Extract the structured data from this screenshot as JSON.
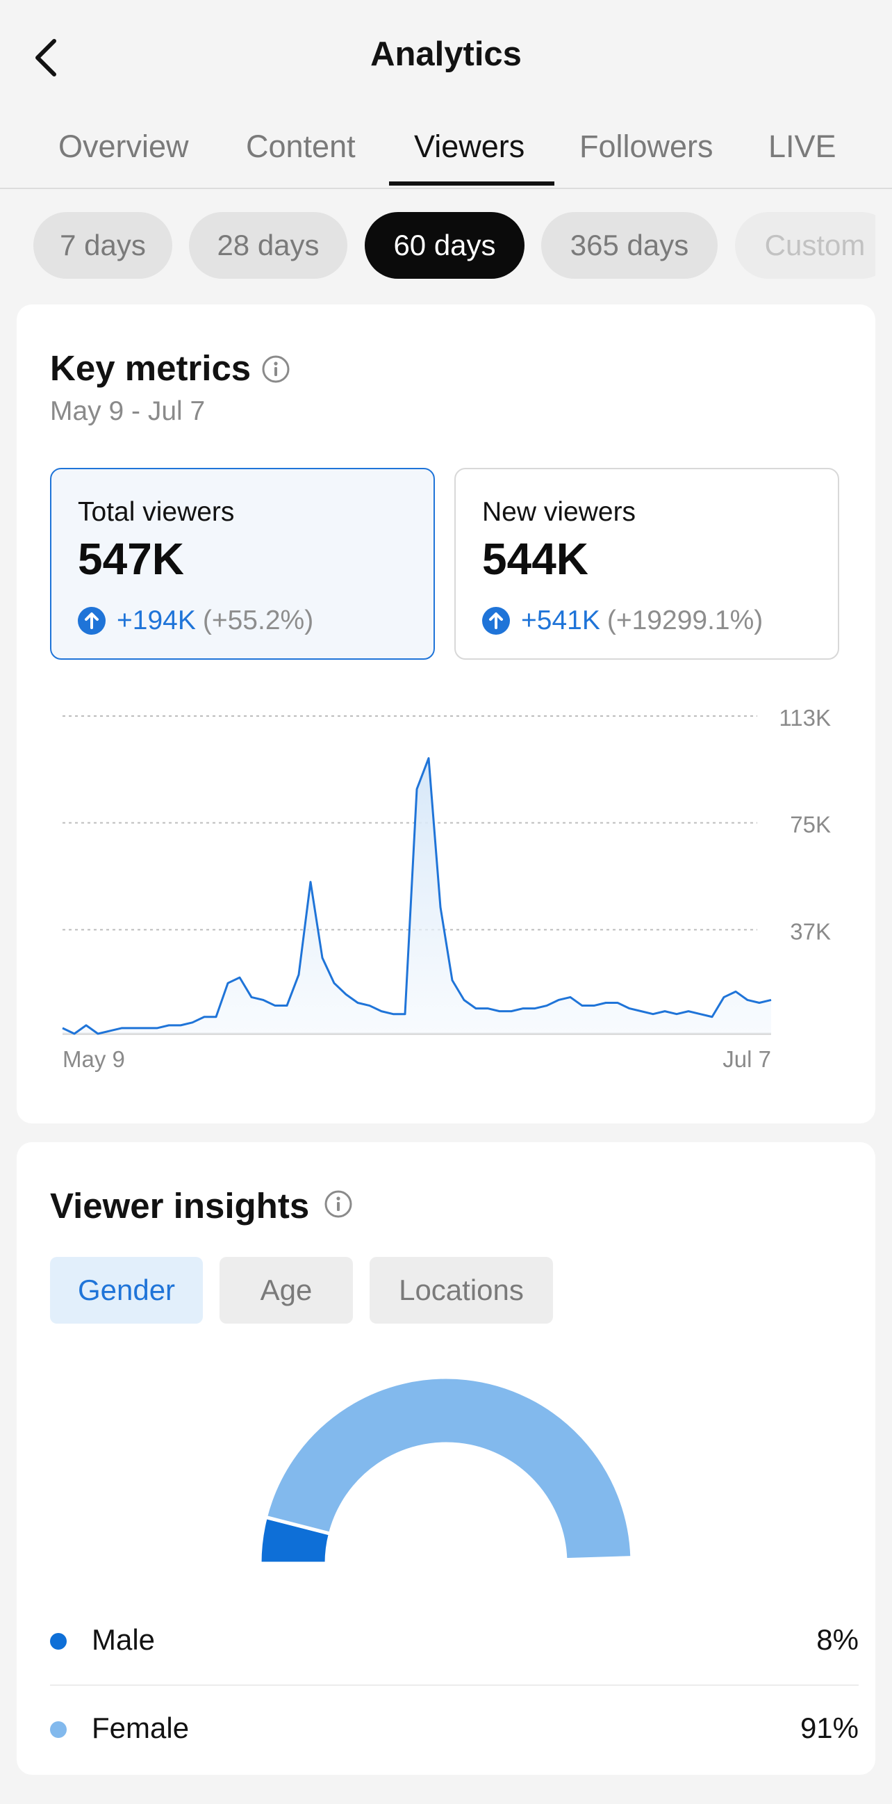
{
  "header": {
    "title": "Analytics",
    "back_icon": "chevron-left-icon"
  },
  "tabs": [
    {
      "label": "Overview",
      "active": false
    },
    {
      "label": "Content",
      "active": false
    },
    {
      "label": "Viewers",
      "active": true
    },
    {
      "label": "Followers",
      "active": false
    },
    {
      "label": "LIVE",
      "active": false
    }
  ],
  "periods": [
    {
      "label": "7 days",
      "active": false
    },
    {
      "label": "28 days",
      "active": false
    },
    {
      "label": "60 days",
      "active": true
    },
    {
      "label": "365 days",
      "active": false
    },
    {
      "label": "Custom",
      "active": false
    }
  ],
  "key_metrics": {
    "title": "Key metrics",
    "date_range": "May 9 - Jul 7",
    "metrics": [
      {
        "label": "Total viewers",
        "value": "547K",
        "change": "+194K",
        "change_pct": "(+55.2%)",
        "selected": true
      },
      {
        "label": "New viewers",
        "value": "544K",
        "change": "+541K",
        "change_pct": "(+19299.1%)",
        "selected": false
      }
    ]
  },
  "chart_data": {
    "type": "area",
    "title": "",
    "series": [
      {
        "values": [
          2,
          0,
          3,
          0,
          1,
          2,
          2,
          2,
          2,
          3,
          3,
          4,
          6,
          6,
          18,
          20,
          13,
          12,
          10,
          10,
          21,
          54,
          27,
          18,
          14,
          11,
          10,
          8,
          7,
          7,
          87,
          98,
          45,
          19,
          12,
          9,
          9,
          8,
          8,
          9,
          9,
          10,
          12,
          13,
          10,
          10,
          11,
          11,
          9,
          8,
          7,
          8,
          7,
          8,
          7,
          6,
          13,
          15,
          12,
          11,
          12
        ]
      }
    ],
    "x_labels": [
      "May 9",
      "Jul 7"
    ],
    "yticks": [
      "37K",
      "75K",
      "113K"
    ],
    "ylim": [
      0,
      113
    ],
    "grid": true,
    "colors": {
      "line": "#1f74d8",
      "fill": "#e7f1fb",
      "grid": "#bdbdbd"
    }
  },
  "insights": {
    "title": "Viewer insights",
    "filters": [
      {
        "label": "Gender",
        "active": true
      },
      {
        "label": "Age",
        "active": false
      },
      {
        "label": "Locations",
        "active": false
      }
    ],
    "gender": [
      {
        "label": "Male",
        "value": "8%",
        "fraction": 0.08,
        "color": "#0e6fd7"
      },
      {
        "label": "Female",
        "value": "91%",
        "fraction": 0.91,
        "color": "#82b9ed"
      }
    ]
  }
}
